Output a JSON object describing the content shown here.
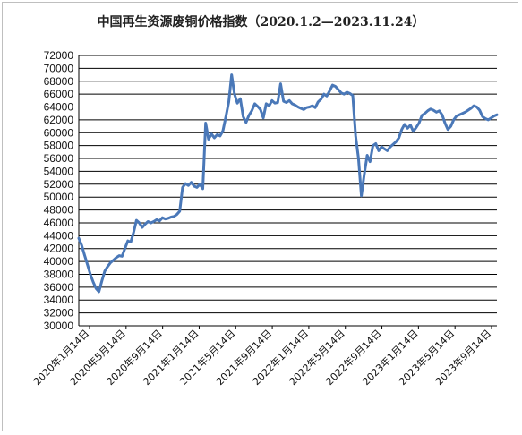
{
  "chart_data": {
    "type": "line",
    "title": "中国再生资源废铜价格指数（2020.1.2—2023.11.24）",
    "xlabel": "",
    "ylabel": "",
    "ylim": [
      30000,
      72000
    ],
    "ystep": 2000,
    "grid": "horizontal",
    "legend": "none",
    "line_color": "#4a78b8",
    "yticks": [
      "30000",
      "32000",
      "34000",
      "36000",
      "38000",
      "40000",
      "42000",
      "44000",
      "46000",
      "48000",
      "50000",
      "52000",
      "54000",
      "56000",
      "58000",
      "60000",
      "62000",
      "64000",
      "66000",
      "68000",
      "70000",
      "72000"
    ],
    "xticks": [
      "2020年1月14日",
      "2020年5月14日",
      "2020年9月14日",
      "2021年1月14日",
      "2021年5月14日",
      "2021年9月14日",
      "2022年1月14日",
      "2022年5月14日",
      "2022年9月14日",
      "2023年1月14日",
      "2023年5月14日",
      "2023年9月14日"
    ],
    "series": [
      {
        "values": [
          [
            1,
            43600
          ],
          [
            2,
            42500
          ],
          [
            3,
            41000
          ],
          [
            4,
            39500
          ],
          [
            5,
            38000
          ],
          [
            6,
            36800
          ],
          [
            7,
            35800
          ],
          [
            8,
            35300
          ],
          [
            9,
            37000
          ],
          [
            10,
            38500
          ],
          [
            11,
            39200
          ],
          [
            12,
            39800
          ],
          [
            13,
            40200
          ],
          [
            14,
            40600
          ],
          [
            15,
            40900
          ],
          [
            16,
            40800
          ],
          [
            17,
            42000
          ],
          [
            18,
            43200
          ],
          [
            19,
            43000
          ],
          [
            20,
            44500
          ],
          [
            21,
            46400
          ],
          [
            22,
            46000
          ],
          [
            23,
            45300
          ],
          [
            24,
            45800
          ],
          [
            25,
            46200
          ],
          [
            26,
            46000
          ],
          [
            27,
            46200
          ],
          [
            28,
            46500
          ],
          [
            29,
            46300
          ],
          [
            30,
            46800
          ],
          [
            31,
            46600
          ],
          [
            32,
            46700
          ],
          [
            33,
            46900
          ],
          [
            34,
            47000
          ],
          [
            35,
            47300
          ],
          [
            36,
            47800
          ],
          [
            37,
            51500
          ],
          [
            38,
            52100
          ],
          [
            39,
            51800
          ],
          [
            40,
            52300
          ],
          [
            41,
            51700
          ],
          [
            42,
            51500
          ],
          [
            43,
            52000
          ],
          [
            44,
            51300
          ],
          [
            45,
            61500
          ],
          [
            46,
            59000
          ],
          [
            47,
            59800
          ],
          [
            48,
            59200
          ],
          [
            49,
            59700
          ],
          [
            50,
            59500
          ],
          [
            51,
            60300
          ],
          [
            52,
            62500
          ],
          [
            53,
            64800
          ],
          [
            54,
            69000
          ],
          [
            55,
            66000
          ],
          [
            56,
            64600
          ],
          [
            57,
            65300
          ],
          [
            58,
            62500
          ],
          [
            59,
            61600
          ],
          [
            60,
            62700
          ],
          [
            61,
            63400
          ],
          [
            62,
            64500
          ],
          [
            63,
            64100
          ],
          [
            64,
            63600
          ],
          [
            65,
            62300
          ],
          [
            66,
            64500
          ],
          [
            67,
            64200
          ],
          [
            68,
            65000
          ],
          [
            69,
            64600
          ],
          [
            70,
            64700
          ],
          [
            71,
            67600
          ],
          [
            72,
            64900
          ],
          [
            73,
            64700
          ],
          [
            74,
            65000
          ],
          [
            75,
            64500
          ],
          [
            76,
            64300
          ],
          [
            77,
            64000
          ],
          [
            78,
            63800
          ],
          [
            79,
            63600
          ],
          [
            80,
            63900
          ],
          [
            81,
            64000
          ],
          [
            82,
            64200
          ],
          [
            83,
            63900
          ],
          [
            84,
            64800
          ],
          [
            85,
            65200
          ],
          [
            86,
            66000
          ],
          [
            87,
            65700
          ],
          [
            88,
            66500
          ],
          [
            89,
            67400
          ],
          [
            90,
            67200
          ],
          [
            91,
            66700
          ],
          [
            92,
            66200
          ],
          [
            93,
            66000
          ],
          [
            94,
            66300
          ],
          [
            95,
            66100
          ],
          [
            96,
            65800
          ],
          [
            97,
            59500
          ],
          [
            98,
            56000
          ],
          [
            99,
            50200
          ],
          [
            100,
            53500
          ],
          [
            101,
            56500
          ],
          [
            102,
            55500
          ],
          [
            103,
            58000
          ],
          [
            104,
            58300
          ],
          [
            105,
            57200
          ],
          [
            106,
            57800
          ],
          [
            107,
            57500
          ],
          [
            108,
            57200
          ],
          [
            109,
            57800
          ],
          [
            110,
            58200
          ],
          [
            111,
            58600
          ],
          [
            112,
            59200
          ],
          [
            113,
            60500
          ],
          [
            114,
            61300
          ],
          [
            115,
            60700
          ],
          [
            116,
            61200
          ],
          [
            117,
            60200
          ],
          [
            118,
            60800
          ],
          [
            119,
            61500
          ],
          [
            120,
            62700
          ],
          [
            121,
            63000
          ],
          [
            122,
            63400
          ],
          [
            123,
            63700
          ],
          [
            124,
            63500
          ],
          [
            125,
            63200
          ],
          [
            126,
            63400
          ],
          [
            127,
            62800
          ],
          [
            128,
            61500
          ],
          [
            129,
            60500
          ],
          [
            130,
            61000
          ],
          [
            131,
            62000
          ],
          [
            132,
            62600
          ],
          [
            133,
            62800
          ],
          [
            134,
            63000
          ],
          [
            135,
            63200
          ],
          [
            136,
            63500
          ],
          [
            137,
            63800
          ],
          [
            138,
            64200
          ],
          [
            139,
            64000
          ],
          [
            140,
            63500
          ],
          [
            141,
            62500
          ],
          [
            142,
            62200
          ],
          [
            143,
            62000
          ],
          [
            144,
            62300
          ],
          [
            145,
            62600
          ],
          [
            146,
            62800
          ]
        ]
      }
    ]
  }
}
